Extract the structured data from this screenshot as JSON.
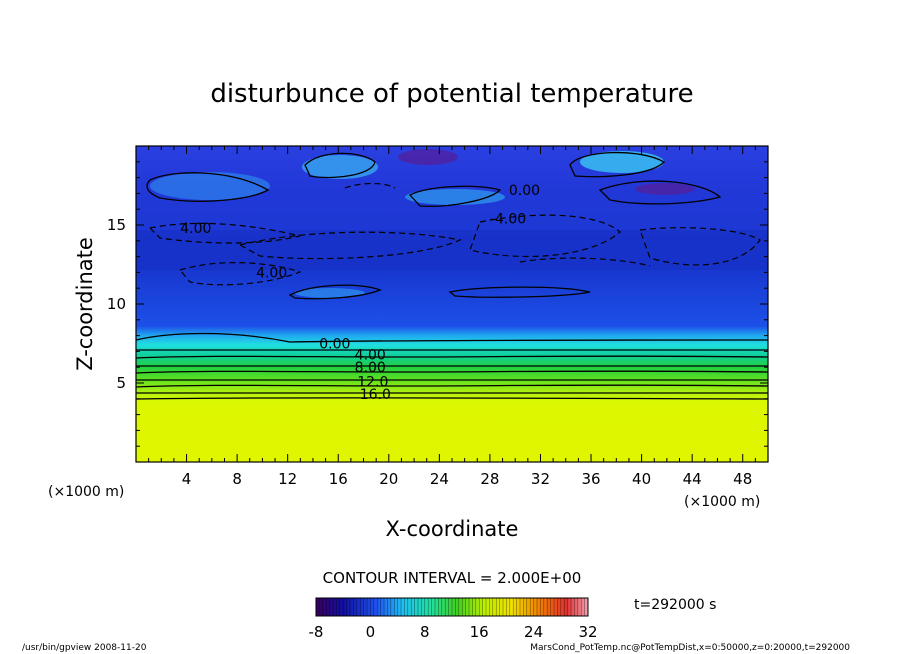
{
  "chart_data": {
    "type": "heatmap",
    "title": "disturbunce of potential temperature",
    "xlabel": "X-coordinate",
    "ylabel": "Z-coordinate",
    "x_unit_left": "(×1000 m)",
    "x_unit_right": "(×1000 m)",
    "xlim": [
      0,
      50
    ],
    "ylim": [
      0,
      20
    ],
    "x_ticks": [
      4,
      8,
      12,
      16,
      20,
      24,
      28,
      32,
      36,
      40,
      44,
      48
    ],
    "y_ticks": [
      5,
      10,
      15
    ],
    "contour_interval_label": "CONTOUR INTERVAL = 2.000E+00",
    "contour_labels": [
      {
        "text": "0.00",
        "x": 29.5,
        "z": 17.2
      },
      {
        "text": "-4.00",
        "x": 28.0,
        "z": 15.4
      },
      {
        "text": "4.00",
        "x": 3.5,
        "z": 14.8
      },
      {
        "text": "4.00",
        "x": 9.5,
        "z": 12.0
      },
      {
        "text": "0.00",
        "x": 14.5,
        "z": 7.5
      },
      {
        "text": "4.00",
        "x": 17.3,
        "z": 6.8
      },
      {
        "text": "8.00",
        "x": 17.3,
        "z": 6.0
      },
      {
        "text": "12.0",
        "x": 17.5,
        "z": 5.1
      },
      {
        "text": "16.0",
        "x": 17.7,
        "z": 4.3
      }
    ],
    "colorbar": {
      "min": -8,
      "max": 32,
      "tick_labels": [
        "-8",
        "0",
        "8",
        "16",
        "24",
        "32"
      ]
    },
    "time_label": "t=292000 s",
    "footer_left": "/usr/bin/gpview  2008-11-20",
    "footer_right": "MarsCond_PotTemp.nc@PotTempDist,x=0:50000,z=0:20000,t=292000"
  }
}
